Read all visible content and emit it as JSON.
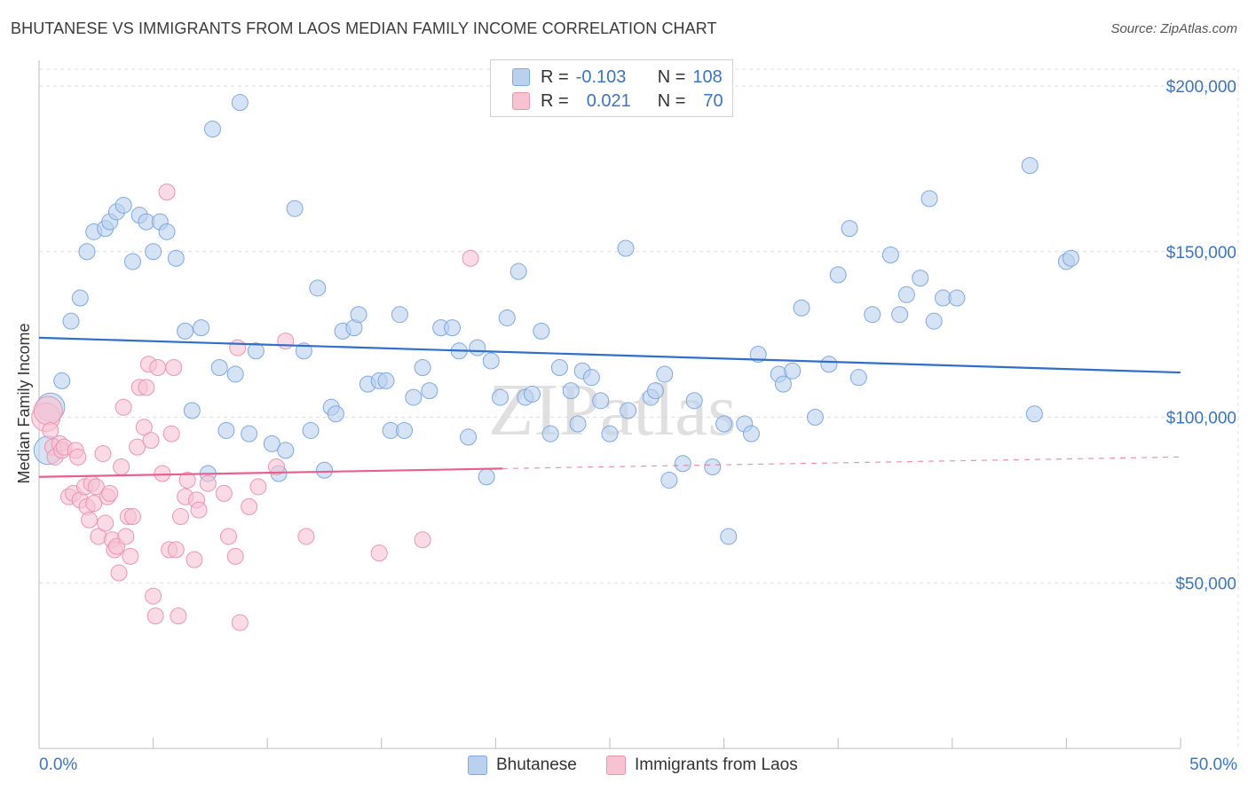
{
  "title": "BHUTANESE VS IMMIGRANTS FROM LAOS MEDIAN FAMILY INCOME CORRELATION CHART",
  "source": "Source: ZipAtlas.com",
  "watermark": "ZIPatlas",
  "legend": {
    "rows": [
      {
        "r_label": "R =",
        "r_value": "-0.103",
        "n_label": "N =",
        "n_value": "108"
      },
      {
        "r_label": "R =",
        "r_value": "0.021",
        "n_label": "N =",
        "n_value": "70"
      }
    ]
  },
  "colors": {
    "blue_fill": "#b9d0ef",
    "blue_stroke": "#7fa8de",
    "blue_line": "#2f6fcb",
    "pink_fill": "#f7c3d3",
    "pink_stroke": "#eb94b0",
    "pink_line": "#e8608c",
    "axis_text": "#3a74c7",
    "grid": "#dedede"
  },
  "chart_data": {
    "type": "scatter",
    "title": "BHUTANESE VS IMMIGRANTS FROM LAOS MEDIAN FAMILY INCOME CORRELATION CHART",
    "xlabel": "",
    "ylabel": "Median Family Income",
    "xlim": [
      0,
      50
    ],
    "ylim": [
      0,
      205000
    ],
    "x_tick_labels": [
      "0.0%",
      "50.0%"
    ],
    "y_ticks": [
      50000,
      100000,
      150000,
      200000
    ],
    "y_tick_labels": [
      "$50,000",
      "$100,000",
      "$150,000",
      "$200,000"
    ],
    "grid": true,
    "legend_position": "top-center",
    "series": [
      {
        "name": "Bhutanese",
        "color": "#b9d0ef",
        "trend": {
          "x": [
            0,
            50
          ],
          "y": [
            124000,
            113500
          ]
        },
        "points": [
          [
            0.5,
            103000
          ],
          [
            0.4,
            90000
          ],
          [
            1.0,
            111000
          ],
          [
            1.4,
            129000
          ],
          [
            1.8,
            136000
          ],
          [
            2.1,
            150000
          ],
          [
            2.4,
            156000
          ],
          [
            2.9,
            157000
          ],
          [
            3.1,
            159000
          ],
          [
            3.4,
            162000
          ],
          [
            3.7,
            164000
          ],
          [
            4.1,
            147000
          ],
          [
            4.4,
            161000
          ],
          [
            4.7,
            159000
          ],
          [
            5.0,
            150000
          ],
          [
            5.3,
            159000
          ],
          [
            5.6,
            156000
          ],
          [
            6.0,
            148000
          ],
          [
            6.4,
            126000
          ],
          [
            6.7,
            102000
          ],
          [
            7.1,
            127000
          ],
          [
            7.4,
            83000
          ],
          [
            7.6,
            187000
          ],
          [
            7.9,
            115000
          ],
          [
            8.2,
            96000
          ],
          [
            8.6,
            113000
          ],
          [
            8.8,
            195000
          ],
          [
            9.2,
            95000
          ],
          [
            9.5,
            120000
          ],
          [
            10.2,
            92000
          ],
          [
            10.8,
            90000
          ],
          [
            10.5,
            83000
          ],
          [
            11.2,
            163000
          ],
          [
            11.6,
            120000
          ],
          [
            11.9,
            96000
          ],
          [
            12.2,
            139000
          ],
          [
            12.5,
            84000
          ],
          [
            12.8,
            103000
          ],
          [
            13.0,
            101000
          ],
          [
            13.3,
            126000
          ],
          [
            13.8,
            127000
          ],
          [
            14.0,
            131000
          ],
          [
            14.4,
            110000
          ],
          [
            14.9,
            111000
          ],
          [
            15.2,
            111000
          ],
          [
            15.4,
            96000
          ],
          [
            15.8,
            131000
          ],
          [
            16.0,
            96000
          ],
          [
            16.4,
            106000
          ],
          [
            16.8,
            115000
          ],
          [
            17.1,
            108000
          ],
          [
            17.6,
            127000
          ],
          [
            18.1,
            127000
          ],
          [
            18.4,
            120000
          ],
          [
            18.8,
            94000
          ],
          [
            19.2,
            121000
          ],
          [
            19.6,
            82000
          ],
          [
            19.8,
            117000
          ],
          [
            20.2,
            106000
          ],
          [
            20.5,
            130000
          ],
          [
            21.0,
            144000
          ],
          [
            21.3,
            106000
          ],
          [
            21.6,
            107000
          ],
          [
            22.0,
            126000
          ],
          [
            22.4,
            95000
          ],
          [
            22.8,
            115000
          ],
          [
            23.3,
            108000
          ],
          [
            23.6,
            98000
          ],
          [
            23.8,
            114000
          ],
          [
            24.2,
            112000
          ],
          [
            24.6,
            105000
          ],
          [
            25.0,
            95000
          ],
          [
            25.7,
            151000
          ],
          [
            25.8,
            102000
          ],
          [
            26.8,
            106000
          ],
          [
            27.0,
            108000
          ],
          [
            27.4,
            113000
          ],
          [
            27.6,
            81000
          ],
          [
            28.2,
            86000
          ],
          [
            28.7,
            105000
          ],
          [
            29.5,
            85000
          ],
          [
            30.0,
            98000
          ],
          [
            30.2,
            64000
          ],
          [
            30.9,
            98000
          ],
          [
            31.2,
            95000
          ],
          [
            31.5,
            119000
          ],
          [
            32.4,
            113000
          ],
          [
            32.6,
            110000
          ],
          [
            33.0,
            114000
          ],
          [
            33.4,
            133000
          ],
          [
            34.0,
            100000
          ],
          [
            34.6,
            116000
          ],
          [
            35.0,
            143000
          ],
          [
            35.5,
            157000
          ],
          [
            35.9,
            112000
          ],
          [
            36.5,
            131000
          ],
          [
            37.3,
            149000
          ],
          [
            37.7,
            131000
          ],
          [
            38.0,
            137000
          ],
          [
            38.6,
            142000
          ],
          [
            39.0,
            166000
          ],
          [
            39.2,
            129000
          ],
          [
            39.6,
            136000
          ],
          [
            40.2,
            136000
          ],
          [
            43.4,
            176000
          ],
          [
            43.6,
            101000
          ],
          [
            45.0,
            147000
          ],
          [
            45.2,
            148000
          ]
        ]
      },
      {
        "name": "Immigrants from Laos",
        "color": "#f7c3d3",
        "trend": {
          "x": [
            0,
            20.3
          ],
          "y": [
            82000,
            84500
          ],
          "dashed_to": [
            50,
            88000
          ]
        },
        "points": [
          [
            0.3,
            100000
          ],
          [
            0.4,
            102000
          ],
          [
            0.5,
            96000
          ],
          [
            0.6,
            91000
          ],
          [
            0.7,
            88000
          ],
          [
            0.9,
            92000
          ],
          [
            1.0,
            90000
          ],
          [
            1.1,
            91000
          ],
          [
            1.3,
            76000
          ],
          [
            1.5,
            77000
          ],
          [
            1.6,
            90000
          ],
          [
            1.7,
            88000
          ],
          [
            1.8,
            75000
          ],
          [
            2.0,
            79000
          ],
          [
            2.1,
            73000
          ],
          [
            2.2,
            69000
          ],
          [
            2.3,
            80000
          ],
          [
            2.4,
            74000
          ],
          [
            2.5,
            79000
          ],
          [
            2.6,
            64000
          ],
          [
            2.8,
            89000
          ],
          [
            2.9,
            68000
          ],
          [
            3.0,
            76000
          ],
          [
            3.1,
            77000
          ],
          [
            3.2,
            63000
          ],
          [
            3.3,
            60000
          ],
          [
            3.4,
            61000
          ],
          [
            3.5,
            53000
          ],
          [
            3.6,
            85000
          ],
          [
            3.7,
            103000
          ],
          [
            3.8,
            64000
          ],
          [
            3.9,
            70000
          ],
          [
            4.0,
            58000
          ],
          [
            4.1,
            70000
          ],
          [
            4.3,
            91000
          ],
          [
            4.4,
            109000
          ],
          [
            4.6,
            97000
          ],
          [
            4.7,
            109000
          ],
          [
            4.8,
            116000
          ],
          [
            4.9,
            93000
          ],
          [
            5.0,
            46000
          ],
          [
            5.1,
            40000
          ],
          [
            5.2,
            115000
          ],
          [
            5.4,
            83000
          ],
          [
            5.6,
            168000
          ],
          [
            5.7,
            60000
          ],
          [
            5.8,
            95000
          ],
          [
            5.9,
            115000
          ],
          [
            6.0,
            60000
          ],
          [
            6.1,
            40000
          ],
          [
            6.2,
            70000
          ],
          [
            6.4,
            76000
          ],
          [
            6.5,
            81000
          ],
          [
            6.8,
            57000
          ],
          [
            6.9,
            75000
          ],
          [
            7.0,
            72000
          ],
          [
            7.4,
            80000
          ],
          [
            8.1,
            77000
          ],
          [
            8.3,
            64000
          ],
          [
            8.6,
            58000
          ],
          [
            8.7,
            121000
          ],
          [
            8.8,
            38000
          ],
          [
            9.2,
            73000
          ],
          [
            9.6,
            79000
          ],
          [
            10.4,
            85000
          ],
          [
            10.8,
            123000
          ],
          [
            11.7,
            64000
          ],
          [
            14.9,
            59000
          ],
          [
            16.8,
            63000
          ],
          [
            18.9,
            148000
          ]
        ]
      }
    ]
  }
}
